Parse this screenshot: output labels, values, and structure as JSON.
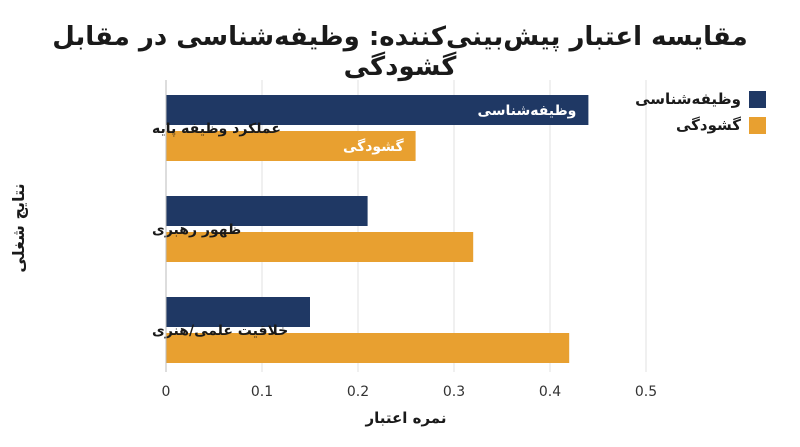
{
  "chart_data": {
    "type": "bar",
    "orientation": "horizontal",
    "title": "مقایسه اعتبار پیش‌بینی‌کننده: وظیفه‌شناسی در مقابل گشودگی",
    "xlabel": "نمره اعتبار",
    "ylabel": "نتایج شغلی",
    "categories": [
      "عملکرد وظیفه پایه",
      "ظهور رهبری",
      "خلاقیت علمی/هنری"
    ],
    "series": [
      {
        "name": "وظیفه‌شناسی",
        "color": "#1f3864",
        "values": [
          0.44,
          0.21,
          0.15
        ]
      },
      {
        "name": "گشودگی",
        "color": "#e8a030",
        "values": [
          0.26,
          0.32,
          0.42
        ]
      }
    ],
    "bar_labels": [
      {
        "series": 0,
        "category": 0,
        "text": "وظیفه‌شناسی"
      },
      {
        "series": 1,
        "category": 0,
        "text": "گشودگی"
      }
    ],
    "xlim": [
      0,
      0.5
    ],
    "xticks": [
      "0",
      "0.1",
      "0.2",
      "0.3",
      "0.4",
      "0.5"
    ],
    "grid": "vertical",
    "legend_position": "top-right"
  }
}
